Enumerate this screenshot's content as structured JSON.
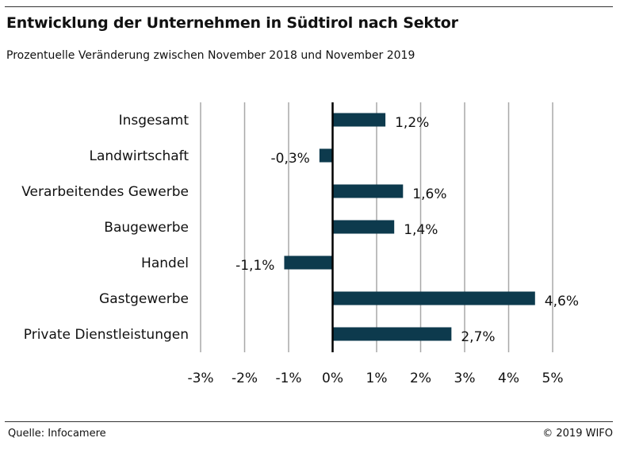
{
  "title": "Entwicklung der Unternehmen in Südtirol nach Sektor",
  "subtitle": "Prozentuelle Veränderung zwischen November 2018 und November 2019",
  "source": "Quelle: Infocamere",
  "copyright": "© 2019 WIFO",
  "colors": {
    "bar": "#0d3a4d",
    "grid": "#a8a8a8",
    "zero_line": "#000000"
  },
  "chart_data": {
    "type": "bar",
    "orientation": "horizontal",
    "categories": [
      "Insgesamt",
      "Landwirtschaft",
      "Verarbeitendes Gewerbe",
      "Baugewerbe",
      "Handel",
      "Gastgewerbe",
      "Private Dienstleistungen"
    ],
    "values": [
      1.2,
      -0.3,
      1.6,
      1.4,
      -1.1,
      4.6,
      2.7
    ],
    "value_labels": [
      "1,2%",
      "-0,3%",
      "1,6%",
      "1,4%",
      "-1,1%",
      "4,6%",
      "2,7%"
    ],
    "xlim": [
      -3,
      5
    ],
    "xticks": [
      -3,
      -2,
      -1,
      0,
      1,
      2,
      3,
      4,
      5
    ],
    "xtick_labels": [
      "-3%",
      "-2%",
      "-1%",
      "0%",
      "1%",
      "2%",
      "3%",
      "4%",
      "5%"
    ],
    "grid": "vertical",
    "legend": "none"
  }
}
